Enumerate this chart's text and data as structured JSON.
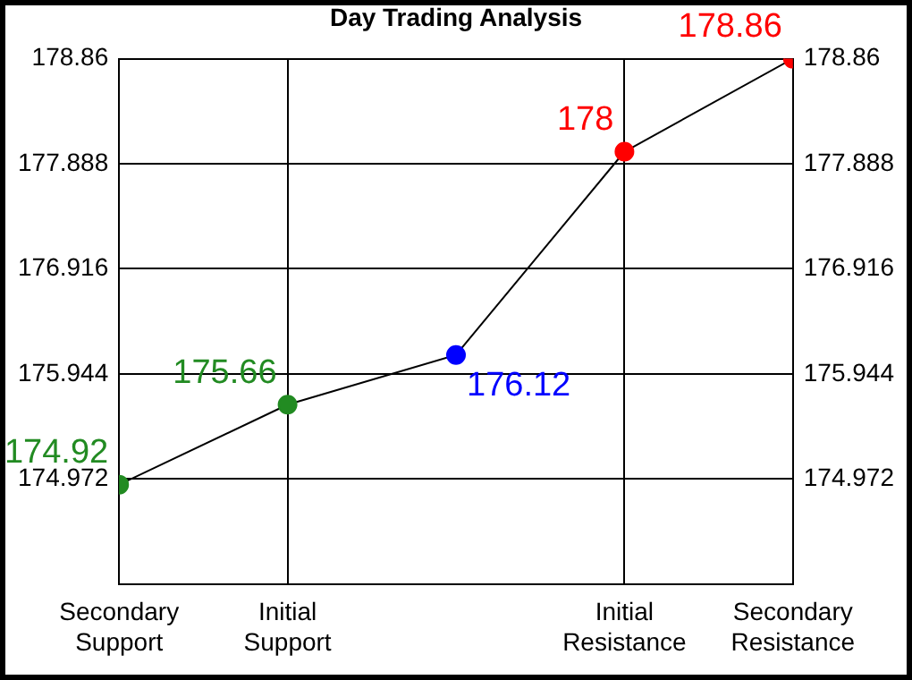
{
  "chart_data": {
    "type": "line",
    "title": "Day Trading Analysis",
    "categories": [
      "Secondary Support",
      "Initial Support",
      null,
      "Initial Resistance",
      "Secondary Resistance"
    ],
    "ylim": [
      174,
      178.86
    ],
    "yticks": [
      174.972,
      175.944,
      176.916,
      177.888,
      178.86
    ],
    "y2lim": [
      174,
      178.86
    ],
    "y2ticks": [
      174.972,
      175.944,
      176.916,
      177.888,
      178.86
    ],
    "series": [
      {
        "color": "#000000",
        "values": [
          174.92,
          175.66,
          176.12,
          178,
          178.86
        ],
        "colors": [
          "#228b22",
          "#228b22",
          "#0000ff",
          "#ff0000",
          "#ff0000"
        ]
      }
    ],
    "data_labels": true,
    "grid": true,
    "marker": "circle",
    "line_style": "solid",
    "legend": false
  }
}
